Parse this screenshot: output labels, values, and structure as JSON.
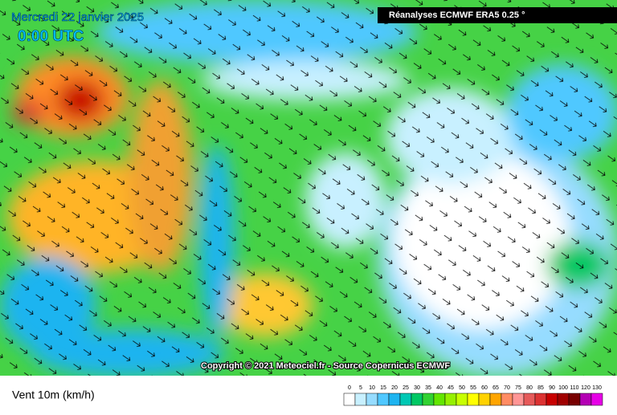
{
  "header": {
    "title": "Mercredi 22 janvier 2025",
    "time": "0:00 UTC",
    "source": "Réanalyses ECMWF ERA5 0.25 °"
  },
  "copyright": "Copyright © 2021 Meteociel.fr - Source Copernicus ECMWF",
  "legend": {
    "label": "Vent 10m (km/h)",
    "scale": [
      0,
      5,
      10,
      15,
      20,
      25,
      30,
      35,
      40,
      45,
      50,
      55,
      60,
      65,
      70,
      75,
      80,
      85,
      90,
      100,
      110,
      120,
      130
    ],
    "colors": [
      "#ffffff",
      "#c8f0ff",
      "#96dcff",
      "#50c8ff",
      "#1eb4f0",
      "#00c8b4",
      "#00c864",
      "#32d232",
      "#64e600",
      "#96f000",
      "#c8ff00",
      "#ffff00",
      "#ffd200",
      "#ffa500",
      "#ff8c64",
      "#ff9696",
      "#e65a5a",
      "#dc3232",
      "#c80000",
      "#a00000",
      "#780000",
      "#b400b4",
      "#e600e6"
    ]
  }
}
